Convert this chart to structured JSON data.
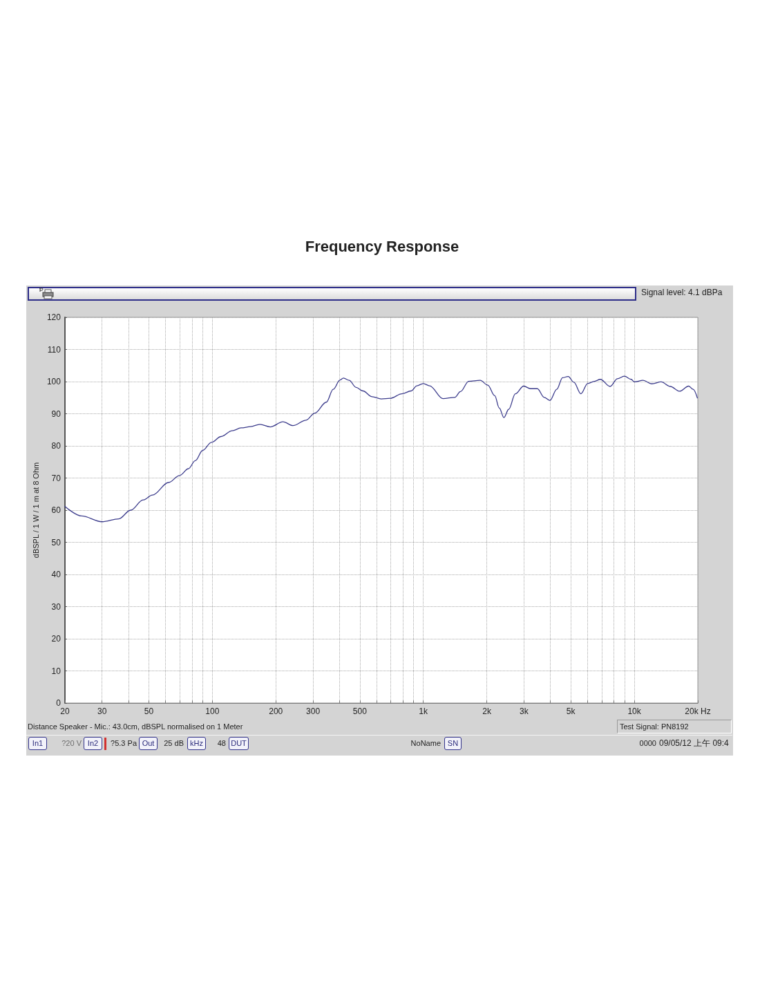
{
  "chart_data": {
    "type": "line",
    "title": "Frequency Response",
    "ylabel": "dBSPL / 1 W / 1 m at 8 Ohm",
    "x": [
      20,
      24,
      30,
      36,
      41,
      47,
      52,
      62,
      70,
      77,
      83,
      90,
      99,
      110,
      124,
      137,
      152,
      168,
      188,
      216,
      241,
      278,
      306,
      347,
      374,
      403,
      418,
      445,
      480,
      517,
      572,
      632,
      698,
      792,
      875,
      932,
      1000,
      1070,
      1240,
      1410,
      1500,
      1640,
      1860,
      2020,
      2180,
      2290,
      2410,
      2540,
      2730,
      2990,
      3220,
      3470,
      3740,
      3980,
      4290,
      4570,
      4860,
      5170,
      5580,
      6010,
      6480,
      6900,
      7680,
      8320,
      8970,
      9670,
      10000,
      11000,
      12100,
      13400,
      14800,
      16400,
      18100,
      19000,
      19900
    ],
    "series": [
      {
        "color": "#3c3c8c",
        "values": [
          61.2,
          58.2,
          56.4,
          57.3,
          60.0,
          63.2,
          64.7,
          68.6,
          70.8,
          72.9,
          75.4,
          78.6,
          81.1,
          82.9,
          84.7,
          85.6,
          86.0,
          86.7,
          85.9,
          87.5,
          86.3,
          88.0,
          90.2,
          93.6,
          97.6,
          100.5,
          101.1,
          100.4,
          98.2,
          97.1,
          95.3,
          94.6,
          94.8,
          96.2,
          97.1,
          98.7,
          99.4,
          98.7,
          94.7,
          95.1,
          96.9,
          100.1,
          100.4,
          98.9,
          95.6,
          91.8,
          88.8,
          91.4,
          96.2,
          98.6,
          97.8,
          97.8,
          95.1,
          94.1,
          97.6,
          101.2,
          101.6,
          99.8,
          96.2,
          99.4,
          100.1,
          100.7,
          98.5,
          100.9,
          101.7,
          100.7,
          99.9,
          100.4,
          99.3,
          99.9,
          98.5,
          97.0,
          98.6,
          97.6,
          94.9
        ]
      }
    ],
    "log": "x",
    "xlim": [
      20,
      20000
    ],
    "ylim": [
      0,
      120
    ],
    "xticks": [
      20,
      30,
      {
        "value": 40,
        "label": null
      },
      50,
      {
        "value": 60,
        "label": null
      },
      {
        "value": 70,
        "label": null
      },
      {
        "value": 80,
        "label": null
      },
      {
        "value": 90,
        "label": null
      },
      100,
      200,
      300,
      {
        "value": 400,
        "label": null
      },
      500,
      {
        "value": 600,
        "label": null
      },
      {
        "value": 700,
        "label": null
      },
      {
        "value": 800,
        "label": null
      },
      {
        "value": 900,
        "label": null
      },
      {
        "value": 1000,
        "label": "1k"
      },
      {
        "value": 2000,
        "label": "2k"
      },
      {
        "value": 3000,
        "label": "3k"
      },
      {
        "value": 4000,
        "label": null
      },
      {
        "value": 5000,
        "label": "5k"
      },
      {
        "value": 6000,
        "label": null
      },
      {
        "value": 7000,
        "label": null
      },
      {
        "value": 8000,
        "label": null
      },
      {
        "value": 9000,
        "label": null
      },
      {
        "value": 10000,
        "label": "10k"
      },
      {
        "value": 20000,
        "label": "20k Hz"
      }
    ],
    "yticks": [
      0,
      10,
      20,
      30,
      40,
      50,
      60,
      70,
      80,
      90,
      100,
      110,
      120
    ],
    "grid": true,
    "marker": "none",
    "line_style": "solid",
    "annotations": [
      "Signal level: 4.1 dBPa",
      "Distance Speaker - Mic.: 43.0cm, dBSPL normalised on 1 Meter",
      "Test Signal: PN8192",
      "In1",
      "?20 V",
      "In2",
      "?5.3 Pa",
      "Out",
      "25 dB",
      "kHz",
      "48",
      "DUT",
      "NoName",
      "SN",
      "0000",
      "09/05/12 上午 09:4"
    ]
  }
}
